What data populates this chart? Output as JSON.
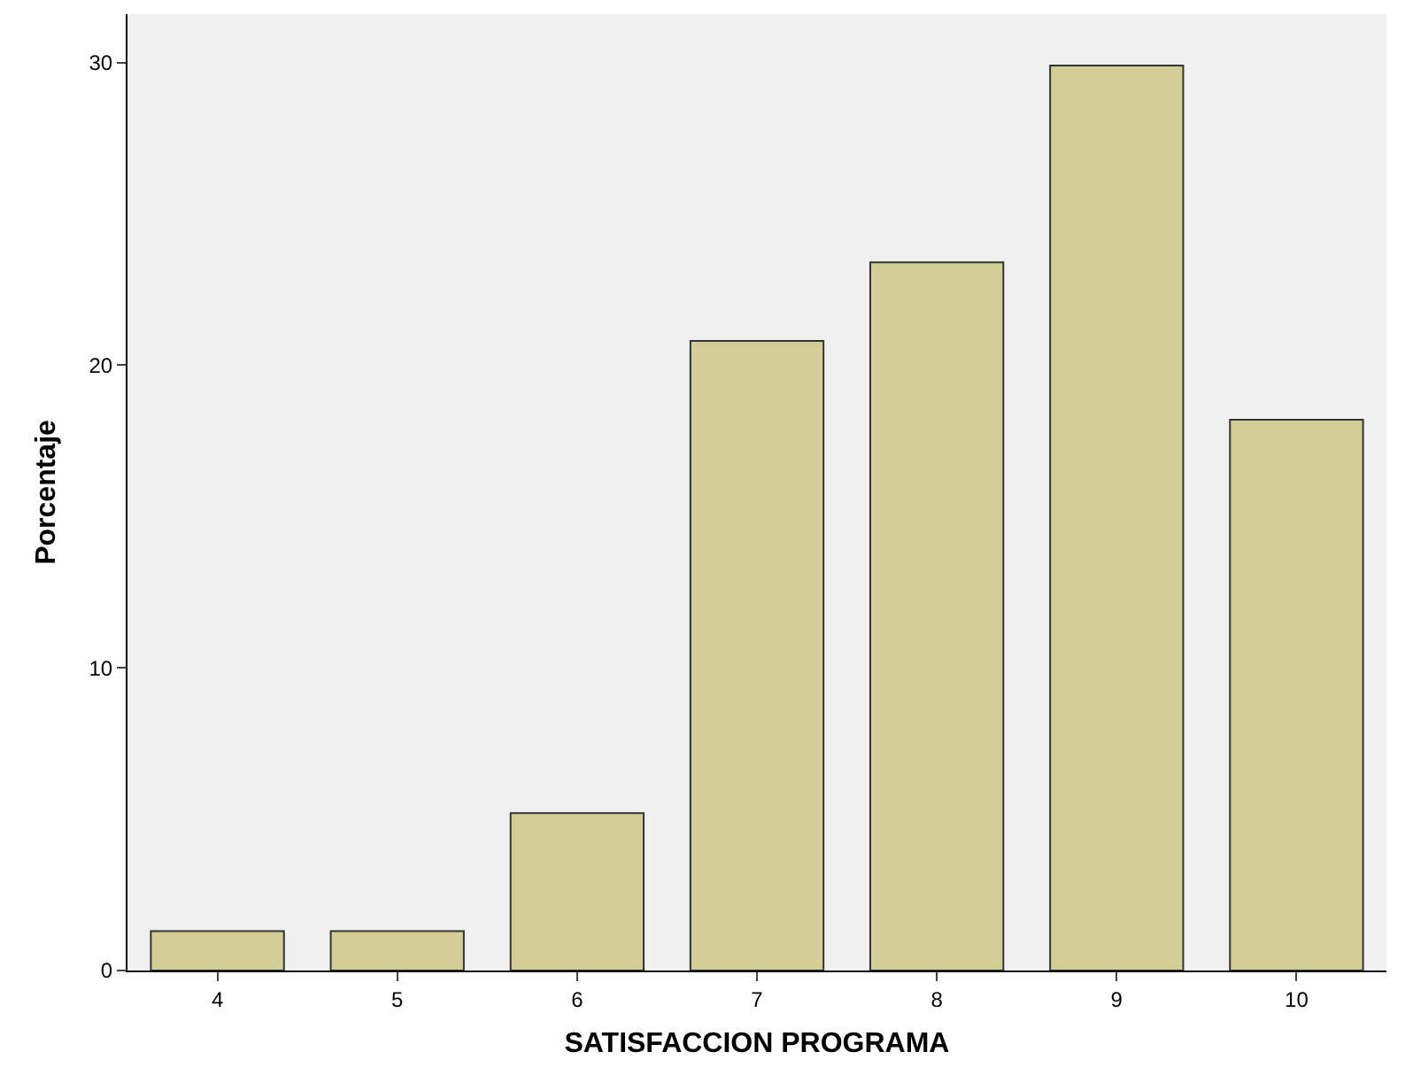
{
  "chart_data": {
    "type": "bar",
    "xlabel": "SATISFACCION PROGRAMA",
    "ylabel": "Porcentaje",
    "categories": [
      "4",
      "5",
      "6",
      "7",
      "8",
      "9",
      "10"
    ],
    "values": [
      1.3,
      1.3,
      5.2,
      20.8,
      23.4,
      29.9,
      18.2
    ],
    "color": "#d3ce97",
    "ylim": [
      0,
      31.6
    ],
    "yticks": [
      0,
      10,
      20,
      30
    ],
    "grid": false
  }
}
